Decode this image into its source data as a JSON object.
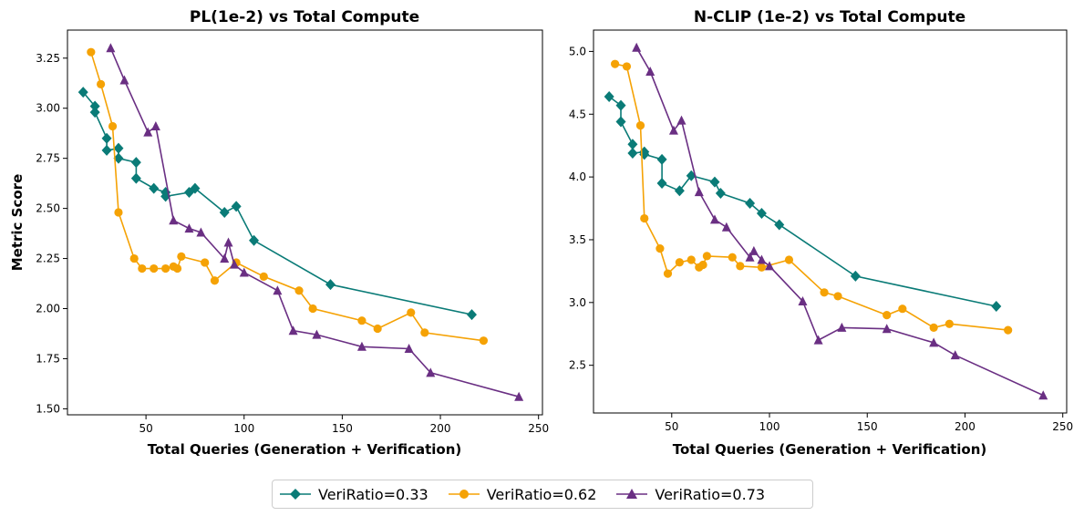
{
  "ylabel": "Metric Score",
  "legend": [
    {
      "label": "VeriRatio=0.33",
      "color": "#0a7b77",
      "marker": "diamond"
    },
    {
      "label": "VeriRatio=0.62",
      "color": "#f5a205",
      "marker": "circle"
    },
    {
      "label": "VeriRatio=0.73",
      "color": "#6a2f83",
      "marker": "triangle"
    }
  ],
  "chart_data": [
    {
      "type": "line",
      "title": "PL(1e-2) vs Total Compute",
      "xlabel": "Total Queries (Generation + Verification)",
      "ylabel": "Metric Score",
      "xlim": [
        10,
        252
      ],
      "ylim": [
        1.47,
        3.39
      ],
      "xticks": [
        50,
        100,
        150,
        200,
        250
      ],
      "xtick_labels": [
        "50",
        "100",
        "150",
        "200",
        "250"
      ],
      "yticks": [
        1.5,
        1.75,
        2.0,
        2.25,
        2.5,
        2.75,
        3.0,
        3.25
      ],
      "ytick_labels": [
        "1.50",
        "1.75",
        "2.00",
        "2.25",
        "2.50",
        "2.75",
        "3.00",
        "3.25"
      ],
      "series": [
        {
          "name": "VeriRatio=0.33",
          "color": "#0a7b77",
          "marker": "diamond",
          "points": [
            [
              18,
              3.08
            ],
            [
              24,
              3.01
            ],
            [
              24,
              2.98
            ],
            [
              30,
              2.85
            ],
            [
              30,
              2.79
            ],
            [
              36,
              2.8
            ],
            [
              36,
              2.75
            ],
            [
              45,
              2.73
            ],
            [
              45,
              2.65
            ],
            [
              54,
              2.6
            ],
            [
              60,
              2.58
            ],
            [
              60,
              2.56
            ],
            [
              72,
              2.58
            ],
            [
              75,
              2.6
            ],
            [
              90,
              2.48
            ],
            [
              96,
              2.51
            ],
            [
              105,
              2.34
            ],
            [
              144,
              2.12
            ],
            [
              216,
              1.97
            ]
          ]
        },
        {
          "name": "VeriRatio=0.62",
          "color": "#f5a205",
          "marker": "circle",
          "points": [
            [
              22,
              3.28
            ],
            [
              27,
              3.12
            ],
            [
              33,
              2.91
            ],
            [
              36,
              2.48
            ],
            [
              44,
              2.25
            ],
            [
              48,
              2.2
            ],
            [
              54,
              2.2
            ],
            [
              60,
              2.2
            ],
            [
              64,
              2.21
            ],
            [
              66,
              2.2
            ],
            [
              68,
              2.26
            ],
            [
              80,
              2.23
            ],
            [
              85,
              2.14
            ],
            [
              96,
              2.23
            ],
            [
              110,
              2.16
            ],
            [
              128,
              2.09
            ],
            [
              135,
              2.0
            ],
            [
              160,
              1.94
            ],
            [
              168,
              1.9
            ],
            [
              185,
              1.98
            ],
            [
              192,
              1.88
            ],
            [
              222,
              1.84
            ]
          ]
        },
        {
          "name": "VeriRatio=0.73",
          "color": "#6a2f83",
          "marker": "triangle",
          "points": [
            [
              32,
              3.3
            ],
            [
              39,
              3.14
            ],
            [
              51,
              2.88
            ],
            [
              55,
              2.91
            ],
            [
              64,
              2.44
            ],
            [
              72,
              2.4
            ],
            [
              78,
              2.38
            ],
            [
              90,
              2.25
            ],
            [
              92,
              2.33
            ],
            [
              95,
              2.22
            ],
            [
              100,
              2.18
            ],
            [
              117,
              2.09
            ],
            [
              125,
              1.89
            ],
            [
              137,
              1.87
            ],
            [
              160,
              1.81
            ],
            [
              184,
              1.8
            ],
            [
              195,
              1.68
            ],
            [
              240,
              1.56
            ]
          ]
        }
      ]
    },
    {
      "type": "line",
      "title": "N-CLIP (1e-2) vs Total Compute",
      "xlabel": "Total Queries (Generation + Verification)",
      "ylabel": "",
      "xlim": [
        10,
        252
      ],
      "ylim": [
        2.12,
        5.17
      ],
      "xticks": [
        50,
        100,
        150,
        200,
        250
      ],
      "xtick_labels": [
        "50",
        "100",
        "150",
        "200",
        "250"
      ],
      "yticks": [
        2.5,
        3.0,
        3.5,
        4.0,
        4.5,
        5.0
      ],
      "ytick_labels": [
        "2.5",
        "3.0",
        "3.5",
        "4.0",
        "4.5",
        "5.0"
      ],
      "series": [
        {
          "name": "VeriRatio=0.33",
          "color": "#0a7b77",
          "marker": "diamond",
          "points": [
            [
              18,
              4.64
            ],
            [
              24,
              4.57
            ],
            [
              24,
              4.44
            ],
            [
              30,
              4.26
            ],
            [
              30,
              4.19
            ],
            [
              36,
              4.2
            ],
            [
              36,
              4.18
            ],
            [
              45,
              4.14
            ],
            [
              45,
              3.95
            ],
            [
              54,
              3.89
            ],
            [
              60,
              4.01
            ],
            [
              72,
              3.96
            ],
            [
              75,
              3.87
            ],
            [
              90,
              3.79
            ],
            [
              96,
              3.71
            ],
            [
              105,
              3.62
            ],
            [
              144,
              3.21
            ],
            [
              216,
              2.97
            ]
          ]
        },
        {
          "name": "VeriRatio=0.62",
          "color": "#f5a205",
          "marker": "circle",
          "points": [
            [
              21,
              4.9
            ],
            [
              27,
              4.88
            ],
            [
              34,
              4.41
            ],
            [
              36,
              3.67
            ],
            [
              44,
              3.43
            ],
            [
              48,
              3.23
            ],
            [
              54,
              3.32
            ],
            [
              60,
              3.34
            ],
            [
              64,
              3.28
            ],
            [
              66,
              3.3
            ],
            [
              68,
              3.37
            ],
            [
              81,
              3.36
            ],
            [
              85,
              3.29
            ],
            [
              96,
              3.28
            ],
            [
              110,
              3.34
            ],
            [
              128,
              3.08
            ],
            [
              135,
              3.05
            ],
            [
              160,
              2.9
            ],
            [
              168,
              2.95
            ],
            [
              184,
              2.8
            ],
            [
              192,
              2.83
            ],
            [
              222,
              2.78
            ]
          ]
        },
        {
          "name": "VeriRatio=0.73",
          "color": "#6a2f83",
          "marker": "triangle",
          "points": [
            [
              32,
              5.03
            ],
            [
              39,
              4.84
            ],
            [
              51,
              4.37
            ],
            [
              55,
              4.45
            ],
            [
              64,
              3.88
            ],
            [
              72,
              3.66
            ],
            [
              78,
              3.6
            ],
            [
              90,
              3.36
            ],
            [
              92,
              3.41
            ],
            [
              96,
              3.34
            ],
            [
              100,
              3.29
            ],
            [
              117,
              3.01
            ],
            [
              125,
              2.7
            ],
            [
              137,
              2.8
            ],
            [
              160,
              2.79
            ],
            [
              184,
              2.68
            ],
            [
              195,
              2.58
            ],
            [
              240,
              2.26
            ]
          ]
        }
      ]
    }
  ]
}
